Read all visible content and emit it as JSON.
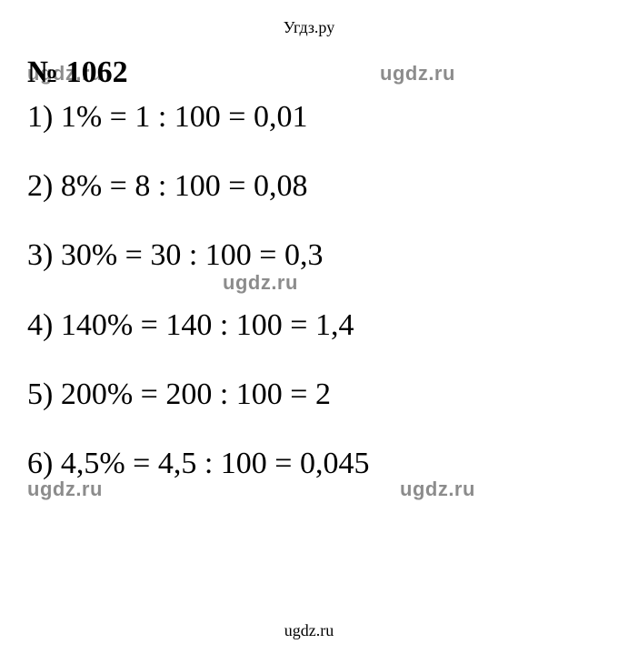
{
  "header": {
    "text": "Угдз.ру"
  },
  "problem": {
    "number": "№ 1062"
  },
  "solutions": [
    {
      "text": "1) 1% = 1 : 100 = 0,01"
    },
    {
      "text": "2) 8% = 8 : 100 = 0,08"
    },
    {
      "text": "3) 30% = 30 : 100 =  0,3"
    },
    {
      "text": "4) 140% = 140 : 100 =  1,4"
    },
    {
      "text": "5) 200% = 200 : 100 =  2"
    },
    {
      "text": "6) 4,5% = 4,5 : 100 = 0,045"
    }
  ],
  "watermark": {
    "text": "ugdz.ru"
  },
  "footer": {
    "text": "ugdz.ru"
  },
  "styles": {
    "background_color": "#ffffff",
    "text_color": "#000000",
    "watermark_color": "rgba(0,0,0,0.45)",
    "problem_number_fontsize": 34,
    "problem_number_fontweight": "bold",
    "solution_fontsize": 34,
    "header_fontsize": 18,
    "footer_fontsize": 18,
    "watermark_fontsize": 22,
    "font_family": "Times New Roman"
  }
}
